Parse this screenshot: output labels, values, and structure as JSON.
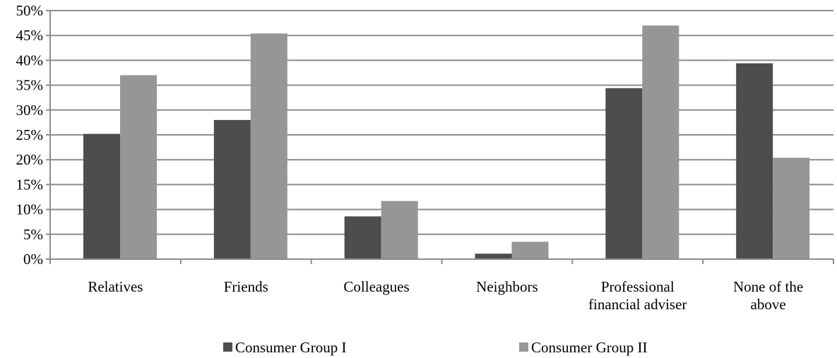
{
  "chart_data": {
    "type": "bar",
    "categories": [
      [
        "Relatives"
      ],
      [
        "Friends"
      ],
      [
        "Colleagues"
      ],
      [
        "Neighbors"
      ],
      [
        "Professional",
        "financial adviser"
      ],
      [
        "None of the",
        "above"
      ]
    ],
    "series": [
      {
        "name": "Consumer Group I",
        "color": "#4d4d4d",
        "values": [
          25.2,
          28.0,
          8.6,
          1.1,
          34.4,
          39.4
        ]
      },
      {
        "name": "Consumer Group II",
        "color": "#969696",
        "values": [
          37.0,
          45.4,
          11.7,
          3.5,
          47.0,
          20.4
        ]
      }
    ],
    "ylim": [
      0,
      50
    ],
    "yticks": [
      0,
      5,
      10,
      15,
      20,
      25,
      30,
      35,
      40,
      45,
      50
    ],
    "ytick_labels": [
      "0%",
      "5%",
      "10%",
      "15%",
      "20%",
      "25%",
      "30%",
      "35%",
      "40%",
      "45%",
      "50%"
    ],
    "grid": true,
    "gridline_color": "#8c8c8c",
    "legend_position": "bottom",
    "title": "",
    "xlabel": "",
    "ylabel": ""
  }
}
